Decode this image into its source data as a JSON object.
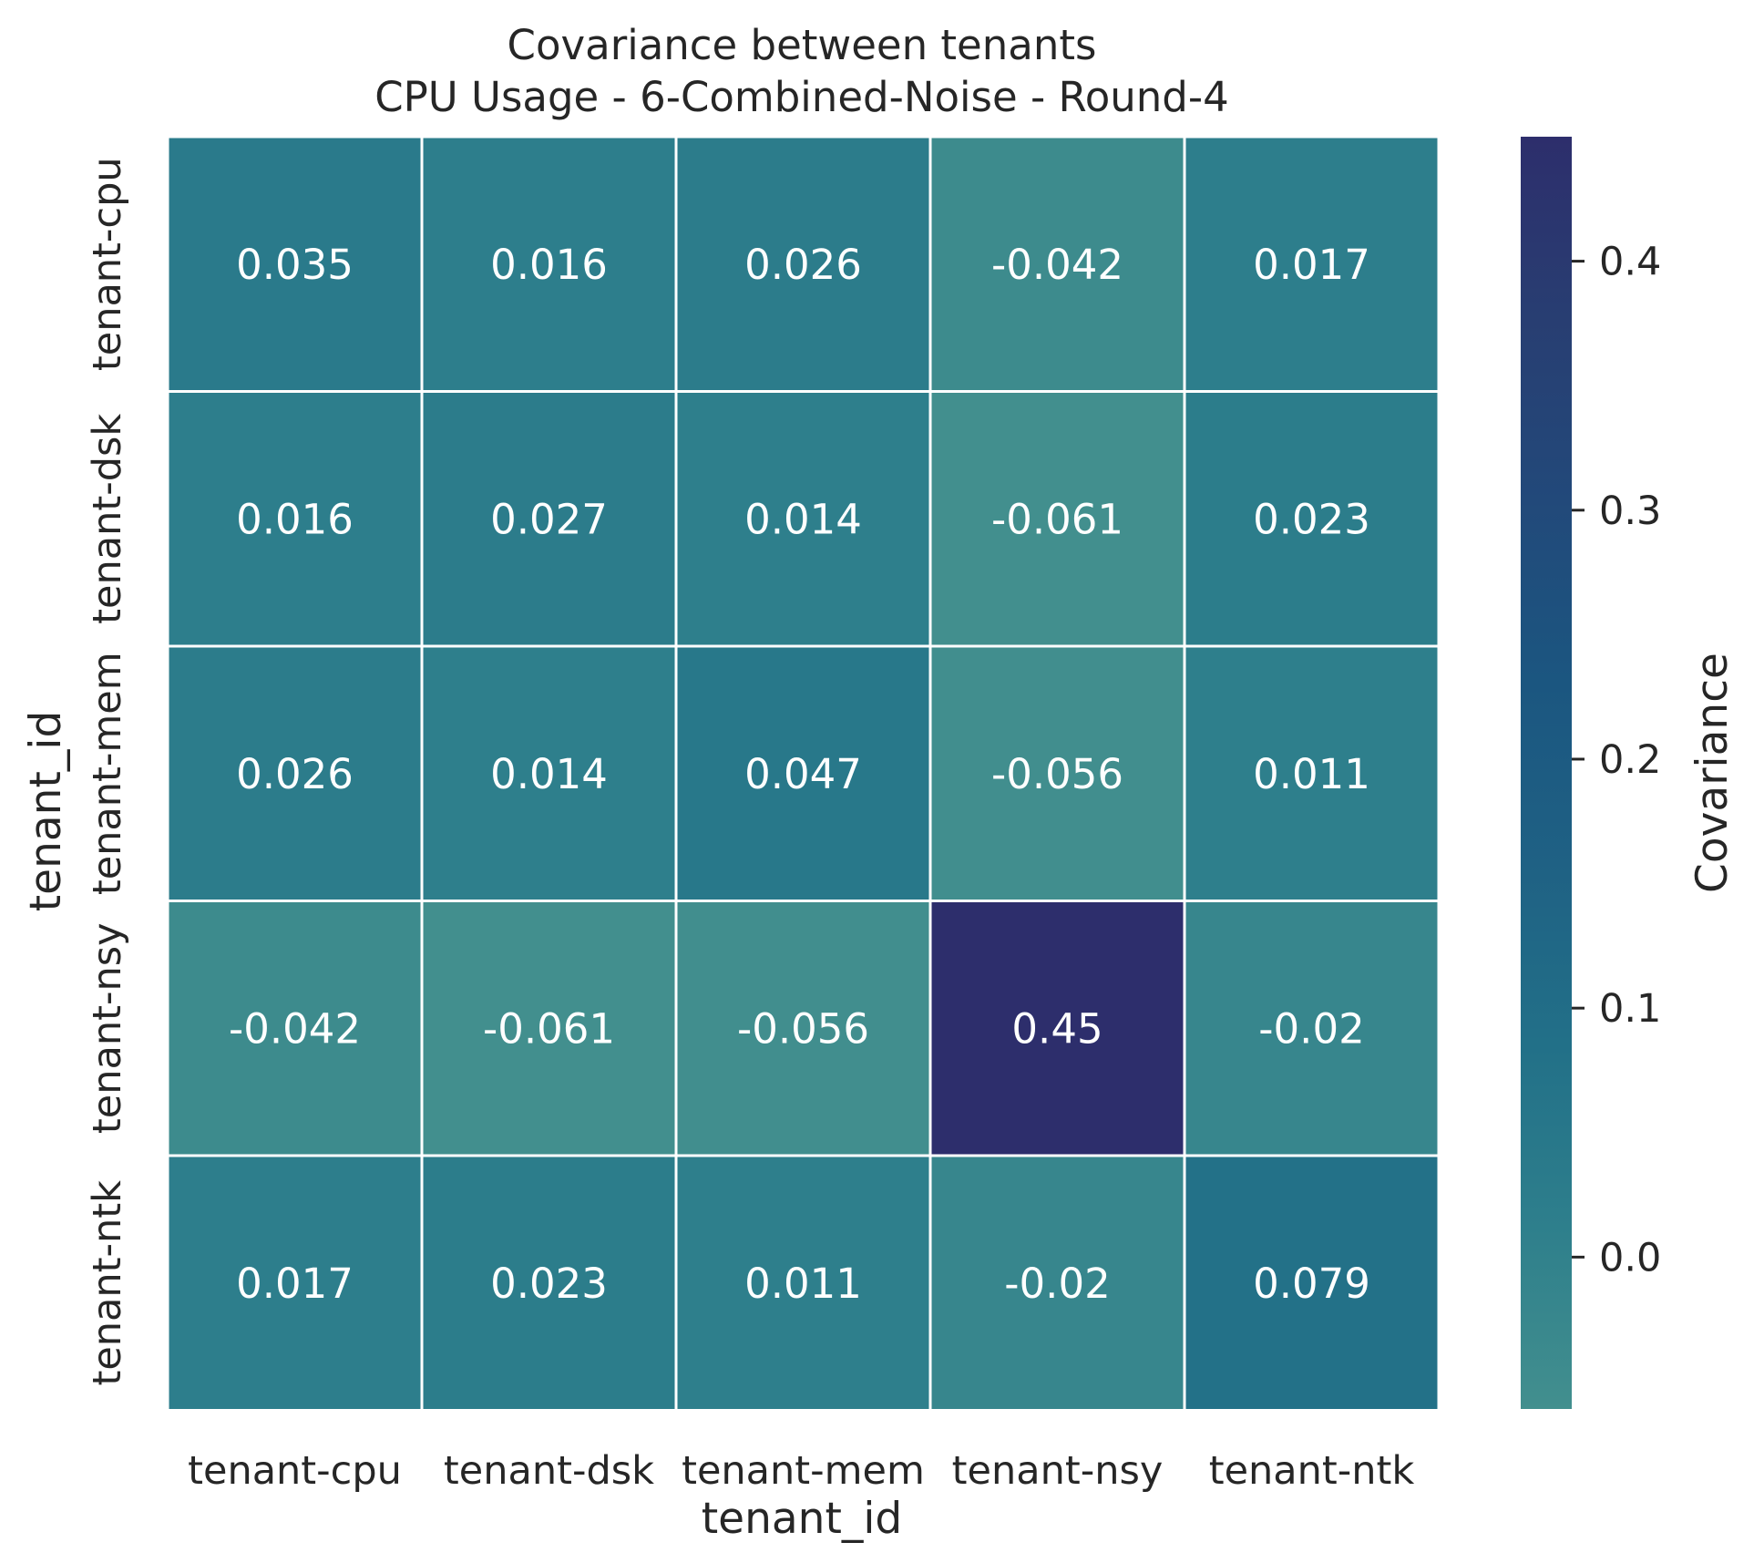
{
  "chart_data": {
    "type": "heatmap",
    "title": "Covariance between tenants",
    "subtitle": "CPU Usage - 6-Combined-Noise - Round-4",
    "xlabel": "tenant_id",
    "ylabel": "tenant_id",
    "x_categories": [
      "tenant-cpu",
      "tenant-dsk",
      "tenant-mem",
      "tenant-nsy",
      "tenant-ntk"
    ],
    "y_categories": [
      "tenant-cpu",
      "tenant-dsk",
      "tenant-mem",
      "tenant-nsy",
      "tenant-ntk"
    ],
    "values": [
      [
        0.035,
        0.016,
        0.026,
        -0.042,
        0.017
      ],
      [
        0.016,
        0.027,
        0.014,
        -0.061,
        0.023
      ],
      [
        0.026,
        0.014,
        0.047,
        -0.056,
        0.011
      ],
      [
        -0.042,
        -0.061,
        -0.056,
        0.45,
        -0.02
      ],
      [
        0.017,
        0.023,
        0.011,
        -0.02,
        0.079
      ]
    ],
    "cell_labels": [
      [
        "0.035",
        "0.016",
        "0.026",
        "-0.042",
        "0.017"
      ],
      [
        "0.016",
        "0.027",
        "0.014",
        "-0.061",
        "0.023"
      ],
      [
        "0.026",
        "0.014",
        "0.047",
        "-0.056",
        "0.011"
      ],
      [
        "-0.042",
        "-0.061",
        "-0.056",
        "0.45",
        "-0.02"
      ],
      [
        "0.017",
        "0.023",
        "0.011",
        "-0.02",
        "0.079"
      ]
    ],
    "colorbar": {
      "label": "Covariance",
      "min": -0.061,
      "max": 0.45,
      "ticks": [
        0.0,
        0.1,
        0.2,
        0.3,
        0.4
      ],
      "tick_labels": [
        "0.0",
        "0.1",
        "0.2",
        "0.3",
        "0.4"
      ],
      "colors": [
        "#428f8e",
        "#2e7f8c",
        "#227088",
        "#1f6184",
        "#1b5680",
        "#22497a",
        "#283e72",
        "#2d2e6c"
      ]
    },
    "cell_text_color": "#ffffff",
    "grid_line_color": "#ffffff"
  }
}
